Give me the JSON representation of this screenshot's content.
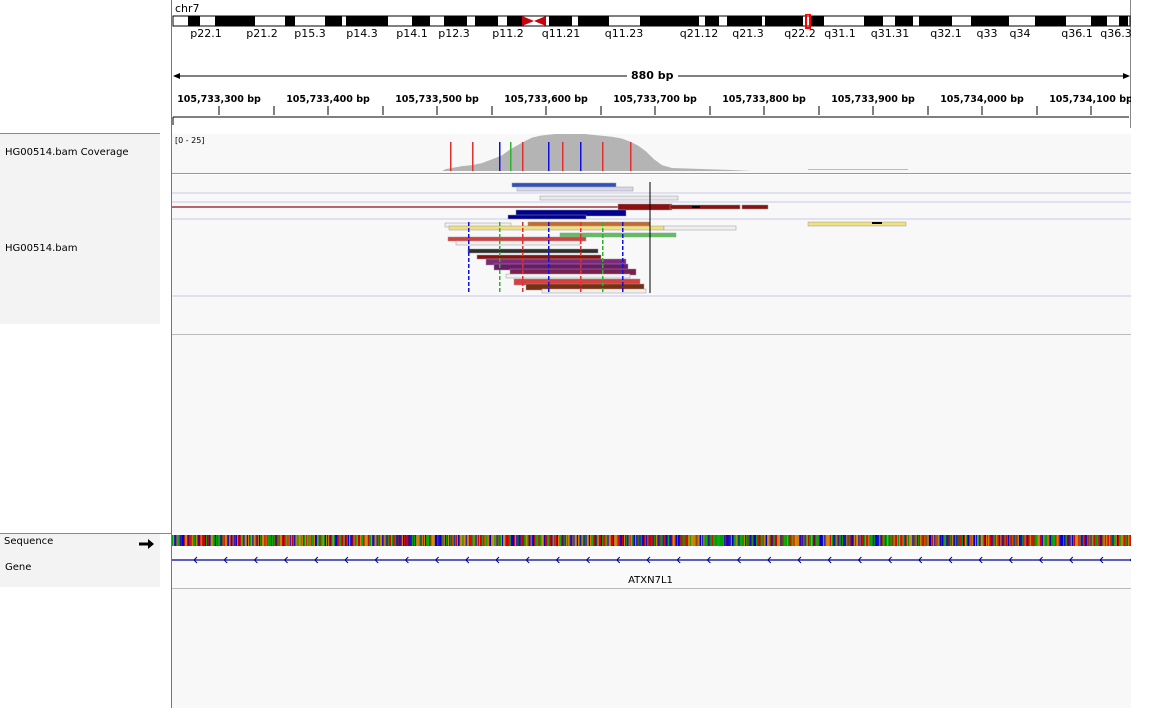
{
  "header": {
    "chromosome": "chr7",
    "span_label": "880 bp",
    "bands": [
      "p22.1",
      "p21.2",
      "p15.3",
      "p14.3",
      "p14.1",
      "p12.3",
      "p11.2",
      "q11.21",
      "q11.23",
      "q21.12",
      "q21.3",
      "q22.2",
      "q31.1",
      "q31.31",
      "q32.1",
      "q33",
      "q34",
      "q36.1",
      "q36.3"
    ],
    "ruler_ticks": [
      "105,733,300 bp",
      "105,733,400 bp",
      "105,733,500 bp",
      "105,733,600 bp",
      "105,733,700 bp",
      "105,733,800 bp",
      "105,733,900 bp",
      "105,734,000 bp",
      "105,734,100 bp"
    ]
  },
  "tracks": {
    "coverage_name": "HG00514.bam Coverage",
    "coverage_range": "[0 - 25]",
    "alignment_name": "HG00514.bam",
    "sequence_name": "Sequence",
    "gene_name": "Gene",
    "gene_label": "ATXN7L1"
  },
  "colors": {
    "centromere": "#c8000a",
    "coverage": "#b4b4b4",
    "gene": "#000096",
    "current_region": "#ff0000"
  }
}
